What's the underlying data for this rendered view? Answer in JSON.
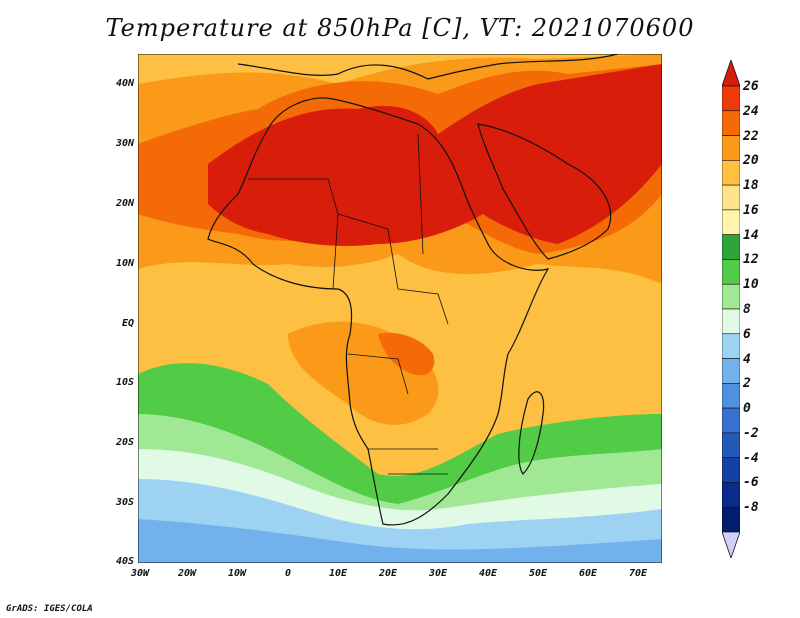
{
  "title": "Temperature at 850hPa [C], VT: 2021070600",
  "credit": "GrADS: IGES/COLA",
  "lat_labels": [
    "40N",
    "30N",
    "20N",
    "10N",
    "EQ",
    "10S",
    "20S",
    "30S",
    "40S"
  ],
  "lon_labels": [
    "30W",
    "20W",
    "10W",
    "0",
    "10E",
    "20E",
    "30E",
    "40E",
    "50E",
    "60E",
    "70E"
  ],
  "colorbar": {
    "labels": [
      "26",
      "24",
      "22",
      "20",
      "18",
      "16",
      "14",
      "12",
      "10",
      "8",
      "6",
      "4",
      "2",
      "0",
      "-2",
      "-4",
      "-6",
      "-8"
    ],
    "colors": [
      "#d81e0a",
      "#ec3a0a",
      "#f46a06",
      "#fa9a18",
      "#fdc043",
      "#fee58c",
      "#fff4ad",
      "#2ea43a",
      "#52cc46",
      "#a0e894",
      "#e0fae6",
      "#9ed2f3",
      "#71b1ec",
      "#4e91e0",
      "#3771cf",
      "#235ab8",
      "#1240a3",
      "#0a2a8c",
      "#021c6e",
      "#d0d0fa"
    ]
  }
}
